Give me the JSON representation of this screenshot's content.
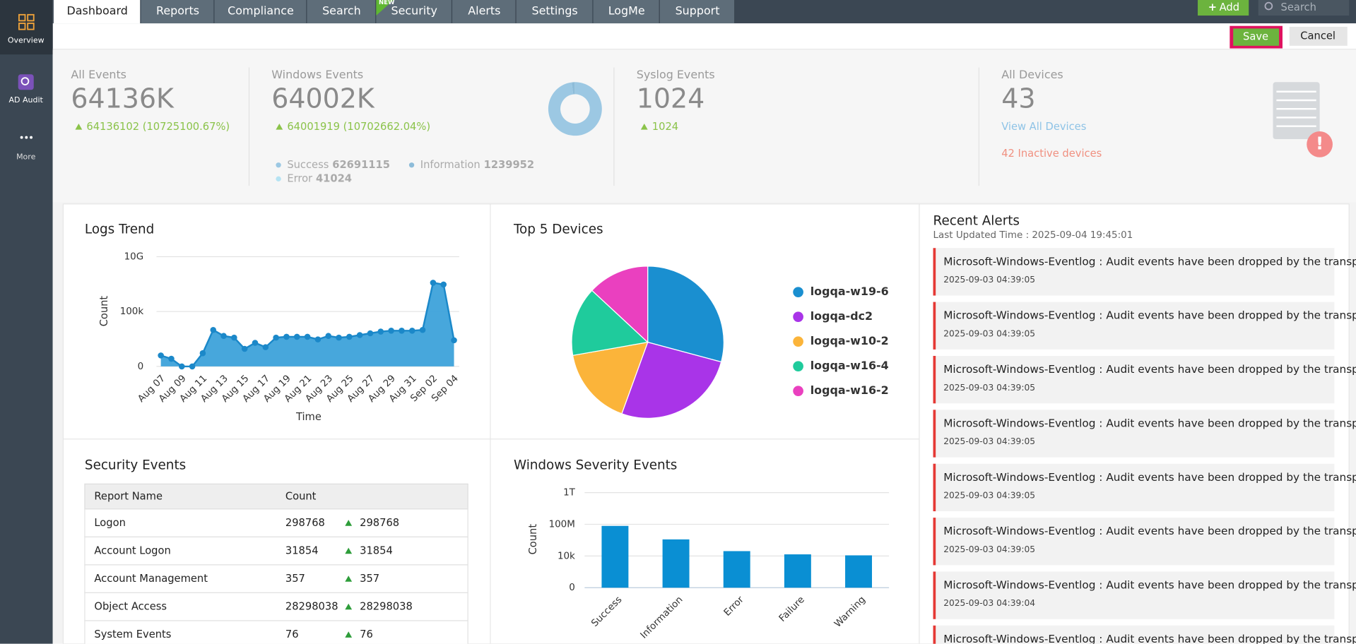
{
  "sidebar": {
    "items": [
      "Overview",
      "AD Audit",
      "More"
    ]
  },
  "nav": {
    "tabs": [
      "Dashboard",
      "Reports",
      "Compliance",
      "Search",
      "Security",
      "Alerts",
      "Settings",
      "LogMe",
      "Support"
    ],
    "badge": "NEW",
    "add": "Add",
    "search": "Search"
  },
  "toolbar": {
    "save": "Save",
    "cancel": "Cancel"
  },
  "summary": {
    "cards": [
      {
        "label": "All Events",
        "value": "64136K",
        "change": "64136102 (10725100.67%)"
      },
      {
        "label": "Windows Events",
        "value": "64002K",
        "change": "64001919 (10702662.04%)"
      },
      {
        "label": "Syslog Events",
        "value": 1024,
        "change": 1024
      },
      {
        "label": "All Devices",
        "value": 43,
        "link": "View All Devices",
        "alert": "42 Inactive devices"
      }
    ],
    "windows_breakdown": [
      {
        "name": "Success",
        "value": 62691115,
        "color": "#9cc8e3"
      },
      {
        "name": "Information",
        "value": 1239952,
        "color": "#8dbcd9"
      },
      {
        "name": "Error",
        "value": 41024,
        "color": "#b5e3f3"
      }
    ]
  },
  "logs_trend": {
    "type": "area",
    "title": "Logs Trend",
    "x_label": "Time",
    "y_label": "Count",
    "yscale": "log",
    "color": "#3da2da",
    "line_color": "#1b88c9",
    "categories": [
      "Aug 07",
      null,
      "Aug 09",
      null,
      "Aug 11",
      null,
      "Aug 13",
      null,
      "Aug 15",
      null,
      "Aug 17",
      null,
      "Aug 19",
      null,
      "Aug 21",
      null,
      "Aug 23",
      null,
      "Aug 25",
      null,
      "Aug 27",
      null,
      "Aug 29",
      null,
      "Aug 31",
      null,
      "Sep 02",
      null,
      "Sep 04"
    ],
    "values": [
      9,
      4,
      0,
      0,
      15,
      2100,
      600,
      420,
      39,
      140,
      56,
      420,
      500,
      500,
      500,
      290,
      600,
      420,
      500,
      720,
      1040,
      1500,
      1800,
      1800,
      1800,
      2100,
      42000000,
      29000000,
      240
    ],
    "ylim": [
      0,
      10000000000
    ],
    "yticks": [
      0,
      {
        "value": 100000,
        "label": "100k"
      },
      {
        "value": 10000000000,
        "label": "10G"
      }
    ],
    "grid": true
  },
  "top_devices": {
    "type": "pie",
    "title": "Top 5 Devices",
    "categories": [
      "logqa-w19-6",
      "logqa-dc2",
      "logqa-w10-2",
      "logqa-w16-4",
      "logqa-w16-2"
    ],
    "values": [
      29.2,
      26.4,
      16.7,
      14.7,
      13.1
    ],
    "colors": [
      "#1a8fd0",
      "#a934e8",
      "#fbb43a",
      "#1fcb9c",
      "#ea40bf"
    ]
  },
  "security_events": {
    "title": "Security Events",
    "columns": [
      "Report Name",
      "Count"
    ],
    "rows": [
      [
        "Logon",
        298768,
        298768
      ],
      [
        "Account Logon",
        31854,
        31854
      ],
      [
        "Account Management",
        357,
        357
      ],
      [
        "Object Access",
        28298038,
        28298038
      ],
      [
        "System Events",
        76,
        76
      ]
    ]
  },
  "windows_severity": {
    "type": "bar",
    "title": "Windows Severity Events",
    "y_label": "Count",
    "yscale": "log",
    "color": "#0a8fd3",
    "categories": [
      "Success",
      "Information",
      "Error",
      "Failure",
      "Warning"
    ],
    "values": [
      62691115,
      1239952,
      41024,
      16000,
      12000
    ],
    "ylim": [
      0,
      1000000000000
    ],
    "yticks": [
      0,
      {
        "value": 10000,
        "label": "10k"
      },
      {
        "value": 100000000,
        "label": "100M"
      },
      {
        "value": 1000000000000,
        "label": "1T"
      }
    ],
    "grid": true
  },
  "recent_alerts": {
    "title": "Recent Alerts",
    "updated": "Last Updated Time : 2025-09-04 19:45:01",
    "items": [
      {
        "text": "Microsoft-Windows-Eventlog : Audit events have been dropped by the transp...",
        "time": "2025-09-03 04:39:05"
      },
      {
        "text": "Microsoft-Windows-Eventlog : Audit events have been dropped by the transp...",
        "time": "2025-09-03 04:39:05"
      },
      {
        "text": "Microsoft-Windows-Eventlog : Audit events have been dropped by the transp...",
        "time": "2025-09-03 04:39:05"
      },
      {
        "text": "Microsoft-Windows-Eventlog : Audit events have been dropped by the transp...",
        "time": "2025-09-03 04:39:05"
      },
      {
        "text": "Microsoft-Windows-Eventlog : Audit events have been dropped by the transp...",
        "time": "2025-09-03 04:39:05"
      },
      {
        "text": "Microsoft-Windows-Eventlog : Audit events have been dropped by the transp...",
        "time": "2025-09-03 04:39:05"
      },
      {
        "text": "Microsoft-Windows-Eventlog : Audit events have been dropped by the transp...",
        "time": "2025-09-03 04:39:04"
      },
      {
        "text": "Microsoft-Windows-Eventlog : Audit events have been dropped by the transp..."
      }
    ]
  }
}
